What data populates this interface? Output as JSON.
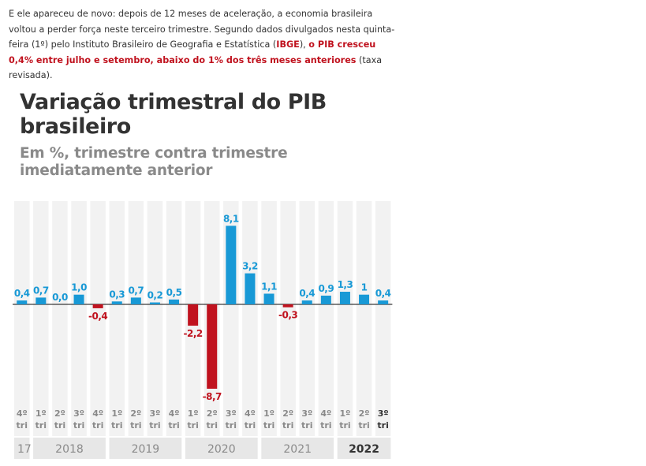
{
  "article": {
    "part1": "E ele apareceu de novo: depois de 12 meses de aceleração, a economia brasileira voltou a perder força neste terceiro trimestre. Segundo dados divulgados nesta quinta-feira (1º) pelo Instituto Brasileiro de Geografia e Estatística (",
    "ibge": "IBGE",
    "part2": "), ",
    "highlight": "o PIB cresceu 0,4% entre julho e setembro, abaixo do 1% dos três meses anteriores",
    "part3": " (taxa revisada)."
  },
  "colors": {
    "positive": "#1899d6",
    "negative": "#c0121e",
    "column_bg": "#f2f2f2",
    "year_bg": "#e7e7e7",
    "text": "#333333",
    "muted": "#8a8a8a"
  },
  "chart_data": {
    "type": "bar",
    "title": "Variação trimestral do PIB brasileiro",
    "subtitle": "Em %, trimestre contra trimestre imediatamente anterior",
    "ylabel": "%",
    "ylim": [
      -9.5,
      10
    ],
    "categories": [
      "4º tri",
      "1º tri",
      "2º tri",
      "3º tri",
      "4º tri",
      "1º tri",
      "2º tri",
      "3º tri",
      "4º tri",
      "1º tri",
      "2º tri",
      "3º tri",
      "4º tri",
      "1º tri",
      "2º tri",
      "3º tri",
      "4º tri",
      "1º tri",
      "2º tri",
      "3º tri"
    ],
    "quarter_labels": [
      {
        "q": "4º",
        "t": "tri"
      },
      {
        "q": "1º",
        "t": "tri"
      },
      {
        "q": "2º",
        "t": "tri"
      },
      {
        "q": "3º",
        "t": "tri"
      },
      {
        "q": "4º",
        "t": "tri"
      },
      {
        "q": "1º",
        "t": "tri"
      },
      {
        "q": "2º",
        "t": "tri"
      },
      {
        "q": "3º",
        "t": "tri"
      },
      {
        "q": "4º",
        "t": "tri"
      },
      {
        "q": "1º",
        "t": "tri"
      },
      {
        "q": "2º",
        "t": "tri"
      },
      {
        "q": "3º",
        "t": "tri"
      },
      {
        "q": "4º",
        "t": "tri"
      },
      {
        "q": "1º",
        "t": "tri"
      },
      {
        "q": "2º",
        "t": "tri"
      },
      {
        "q": "3º",
        "t": "tri"
      },
      {
        "q": "4º",
        "t": "tri"
      },
      {
        "q": "1º",
        "t": "tri"
      },
      {
        "q": "2º",
        "t": "tri"
      },
      {
        "q": "3º",
        "t": "tri"
      }
    ],
    "values": [
      0.4,
      0.7,
      0.0,
      1.0,
      -0.4,
      0.3,
      0.7,
      0.2,
      0.5,
      -2.2,
      -8.7,
      8.1,
      3.2,
      1.1,
      -0.3,
      0.4,
      0.9,
      1.3,
      1,
      0.4
    ],
    "value_labels": [
      "0,4",
      "0,7",
      "0,0",
      "1,0",
      "-0,4",
      "0,3",
      "0,7",
      "0,2",
      "0,5",
      "-2,2",
      "-8,7",
      "8,1",
      "3,2",
      "1,1",
      "-0,3",
      "0,4",
      "0,9",
      "1,3",
      "1",
      "0,4"
    ],
    "years": [
      {
        "label": "17",
        "start": 0,
        "span": 1
      },
      {
        "label": "2018",
        "start": 1,
        "span": 4
      },
      {
        "label": "2019",
        "start": 5,
        "span": 4
      },
      {
        "label": "2020",
        "start": 9,
        "span": 4
      },
      {
        "label": "2021",
        "start": 13,
        "span": 4
      },
      {
        "label": "2022",
        "start": 17,
        "span": 3
      }
    ],
    "highlight_year": "2022",
    "highlight_index": 19
  }
}
